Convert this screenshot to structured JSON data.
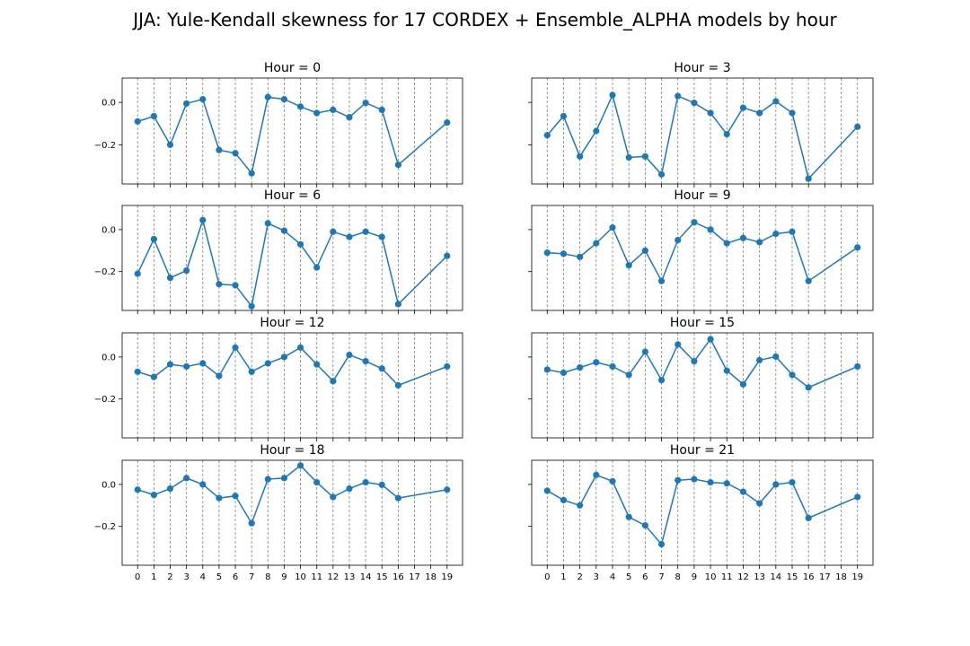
{
  "figure": {
    "title": "JJA: Yule-Kendall skewness for 17 CORDEX + Ensemble_ALPHA models by hour"
  },
  "chart_data": [
    {
      "type": "line",
      "title": "Hour = 0",
      "x": [
        0,
        1,
        2,
        3,
        4,
        5,
        6,
        7,
        8,
        9,
        10,
        11,
        12,
        13,
        14,
        15,
        16,
        19
      ],
      "y": [
        -0.09,
        -0.065,
        -0.2,
        -0.005,
        0.015,
        -0.225,
        -0.24,
        -0.335,
        0.025,
        0.015,
        -0.02,
        -0.05,
        -0.035,
        -0.07,
        -0.002,
        -0.035,
        -0.295,
        -0.095
      ]
    },
    {
      "type": "line",
      "title": "Hour = 3",
      "x": [
        0,
        1,
        2,
        3,
        4,
        5,
        6,
        7,
        8,
        9,
        10,
        11,
        12,
        13,
        14,
        15,
        16,
        19
      ],
      "y": [
        -0.155,
        -0.065,
        -0.255,
        -0.135,
        0.035,
        -0.26,
        -0.255,
        -0.34,
        0.03,
        -0.002,
        -0.05,
        -0.15,
        -0.025,
        -0.05,
        0.005,
        -0.05,
        -0.36,
        -0.115
      ]
    },
    {
      "type": "line",
      "title": "Hour = 6",
      "x": [
        0,
        1,
        2,
        3,
        4,
        5,
        6,
        7,
        8,
        9,
        10,
        11,
        12,
        13,
        14,
        15,
        16,
        19
      ],
      "y": [
        -0.21,
        -0.045,
        -0.23,
        -0.195,
        0.045,
        -0.26,
        -0.265,
        -0.365,
        0.03,
        -0.005,
        -0.07,
        -0.18,
        -0.01,
        -0.035,
        -0.01,
        -0.035,
        -0.355,
        -0.125
      ]
    },
    {
      "type": "line",
      "title": "Hour = 9",
      "x": [
        0,
        1,
        2,
        3,
        4,
        5,
        6,
        7,
        8,
        9,
        10,
        11,
        12,
        13,
        14,
        15,
        16,
        19
      ],
      "y": [
        -0.11,
        -0.115,
        -0.13,
        -0.065,
        0.01,
        -0.17,
        -0.1,
        -0.245,
        -0.05,
        0.035,
        0.0,
        -0.065,
        -0.04,
        -0.06,
        -0.02,
        -0.01,
        -0.245,
        -0.085
      ]
    },
    {
      "type": "line",
      "title": "Hour = 12",
      "x": [
        0,
        1,
        2,
        3,
        4,
        5,
        6,
        7,
        8,
        9,
        10,
        11,
        12,
        13,
        14,
        15,
        16,
        19
      ],
      "y": [
        -0.07,
        -0.095,
        -0.035,
        -0.045,
        -0.03,
        -0.09,
        0.045,
        -0.07,
        -0.03,
        0.0,
        0.045,
        -0.035,
        -0.115,
        0.01,
        -0.02,
        -0.055,
        -0.135,
        -0.045
      ]
    },
    {
      "type": "line",
      "title": "Hour = 15",
      "x": [
        0,
        1,
        2,
        3,
        4,
        5,
        6,
        7,
        8,
        9,
        10,
        11,
        12,
        13,
        14,
        15,
        16,
        19
      ],
      "y": [
        -0.06,
        -0.075,
        -0.05,
        -0.025,
        -0.045,
        -0.085,
        0.025,
        -0.11,
        0.06,
        -0.02,
        0.085,
        -0.065,
        -0.13,
        -0.015,
        0.002,
        -0.085,
        -0.145,
        -0.045
      ]
    },
    {
      "type": "line",
      "title": "Hour = 18",
      "x": [
        0,
        1,
        2,
        3,
        4,
        5,
        6,
        7,
        8,
        9,
        10,
        11,
        12,
        13,
        14,
        15,
        16,
        19
      ],
      "y": [
        -0.025,
        -0.05,
        -0.02,
        0.03,
        0.0,
        -0.065,
        -0.055,
        -0.185,
        0.025,
        0.03,
        0.09,
        0.01,
        -0.06,
        -0.02,
        0.01,
        -0.002,
        -0.065,
        -0.025
      ]
    },
    {
      "type": "line",
      "title": "Hour = 21",
      "x": [
        0,
        1,
        2,
        3,
        4,
        5,
        6,
        7,
        8,
        9,
        10,
        11,
        12,
        13,
        14,
        15,
        16,
        19
      ],
      "y": [
        -0.03,
        -0.075,
        -0.1,
        0.045,
        0.015,
        -0.155,
        -0.195,
        -0.285,
        0.02,
        0.025,
        0.01,
        0.005,
        -0.035,
        -0.09,
        0.0,
        0.01,
        -0.16,
        -0.06
      ]
    }
  ],
  "axes": {
    "x_ticks": [
      0,
      1,
      2,
      3,
      4,
      5,
      6,
      7,
      8,
      9,
      10,
      11,
      12,
      13,
      14,
      15,
      16,
      17,
      18,
      19
    ],
    "xlim": [
      -0.95,
      19.95
    ],
    "y_ticks": [
      0.0,
      -0.2
    ],
    "y_tick_labels": [
      "0.0",
      "−0.2"
    ],
    "ylim": [
      -0.385,
      0.115
    ],
    "grid": "vertical dashed lines at every x tick"
  },
  "colors": {
    "series": "#1f77b4",
    "grid": "#808080",
    "axes": "#000000"
  }
}
